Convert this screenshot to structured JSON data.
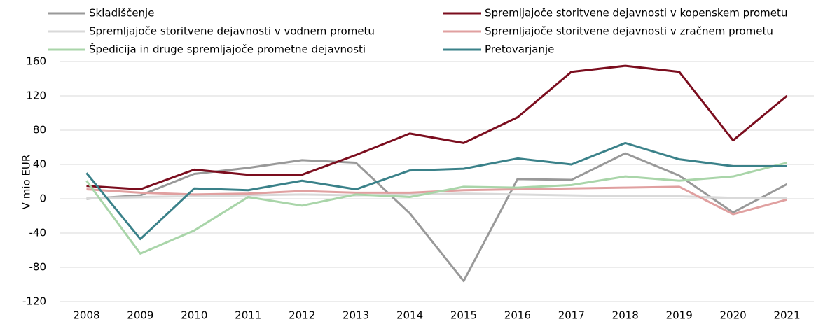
{
  "chart_data": {
    "type": "line",
    "y_label": "V mio EUR",
    "categories": [
      "2008",
      "2009",
      "2010",
      "2011",
      "2012",
      "2013",
      "2014",
      "2015",
      "2016",
      "2017",
      "2018",
      "2019",
      "2020",
      "2021"
    ],
    "series": [
      {
        "name": "Skladiščenje",
        "color": "#999999",
        "values": [
          0,
          4,
          29,
          36,
          45,
          42,
          -17,
          -96,
          23,
          22,
          53,
          27,
          -16,
          17
        ]
      },
      {
        "name": "Spremljajoče storitvene dejavnosti v kopenskem prometu",
        "color": "#7b0d1e",
        "values": [
          15,
          11,
          34,
          28,
          28,
          51,
          76,
          65,
          95,
          148,
          155,
          148,
          68,
          120
        ]
      },
      {
        "name": "Spremljajoče storitvene dejavnosti v vodnem prometu",
        "color": "#d9d9d9",
        "values": [
          1,
          2,
          3,
          4,
          5,
          4,
          5,
          6,
          5,
          4,
          3,
          3,
          1,
          1
        ]
      },
      {
        "name": "Spremljajoče storitvene dejavnosti v zračnem prometu",
        "color": "#e0a0a0",
        "values": [
          11,
          7,
          5,
          6,
          9,
          7,
          7,
          10,
          11,
          12,
          13,
          14,
          -18,
          -1
        ]
      },
      {
        "name": "Špedicija in druge spremljajoče prometne dejavnosti",
        "color": "#a9d5a9",
        "values": [
          21,
          -64,
          -37,
          2,
          -8,
          5,
          2,
          14,
          13,
          16,
          26,
          21,
          26,
          42
        ]
      },
      {
        "name": "Pretovarjanje",
        "color": "#3a8189",
        "values": [
          30,
          -47,
          12,
          10,
          21,
          11,
          33,
          35,
          47,
          40,
          65,
          46,
          38,
          38
        ]
      }
    ],
    "ylim": [
      -120,
      160
    ],
    "yticks": [
      -120,
      -80,
      -40,
      0,
      40,
      80,
      120,
      160
    ],
    "grid": true,
    "legend": "top"
  }
}
